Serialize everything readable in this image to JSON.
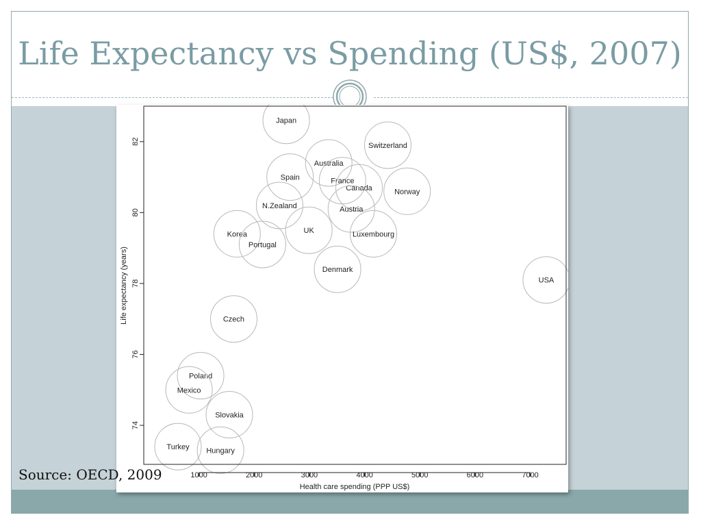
{
  "slide": {
    "title": "Life Expectancy vs Spending (US$, 2007)",
    "source": "Source: OECD, 2009"
  },
  "colors": {
    "title": "#7a9ca3",
    "band": "#c5d2d7",
    "footer": "#8aa8aa",
    "bubble_stroke": "#b8b8b8"
  },
  "chart_data": {
    "type": "scatter",
    "variant": "bubble",
    "xlabel": "Health care spending (PPP US$)",
    "ylabel": "Life expectancy (years)",
    "xlim": [
      0,
      7650
    ],
    "ylim": [
      72.9,
      83.0
    ],
    "x_ticks": [
      1000,
      2000,
      3000,
      4000,
      5000,
      6000,
      7000
    ],
    "y_ticks": [
      74,
      76,
      78,
      80,
      82
    ],
    "grid": false,
    "points": [
      {
        "label": "Japan",
        "x": 2580,
        "y": 82.6
      },
      {
        "label": "Switzerland",
        "x": 4420,
        "y": 81.9
      },
      {
        "label": "Australia",
        "x": 3350,
        "y": 81.4
      },
      {
        "label": "Spain",
        "x": 2650,
        "y": 81.0
      },
      {
        "label": "France",
        "x": 3600,
        "y": 80.9
      },
      {
        "label": "Canada",
        "x": 3900,
        "y": 80.7
      },
      {
        "label": "Norway",
        "x": 4770,
        "y": 80.6
      },
      {
        "label": "N.Zealand",
        "x": 2460,
        "y": 80.2
      },
      {
        "label": "Austria",
        "x": 3760,
        "y": 80.1
      },
      {
        "label": "UK",
        "x": 2990,
        "y": 79.5
      },
      {
        "label": "Korea",
        "x": 1690,
        "y": 79.4
      },
      {
        "label": "Luxembourg",
        "x": 4160,
        "y": 79.4
      },
      {
        "label": "Portugal",
        "x": 2150,
        "y": 79.1
      },
      {
        "label": "Denmark",
        "x": 3510,
        "y": 78.4
      },
      {
        "label": "USA",
        "x": 7290,
        "y": 78.1
      },
      {
        "label": "Czech",
        "x": 1630,
        "y": 77.0
      },
      {
        "label": "Poland",
        "x": 1030,
        "y": 75.4
      },
      {
        "label": "Mexico",
        "x": 820,
        "y": 75.0
      },
      {
        "label": "Slovakia",
        "x": 1550,
        "y": 74.3
      },
      {
        "label": "Turkey",
        "x": 620,
        "y": 73.4
      },
      {
        "label": "Hungary",
        "x": 1390,
        "y": 73.3
      }
    ]
  }
}
